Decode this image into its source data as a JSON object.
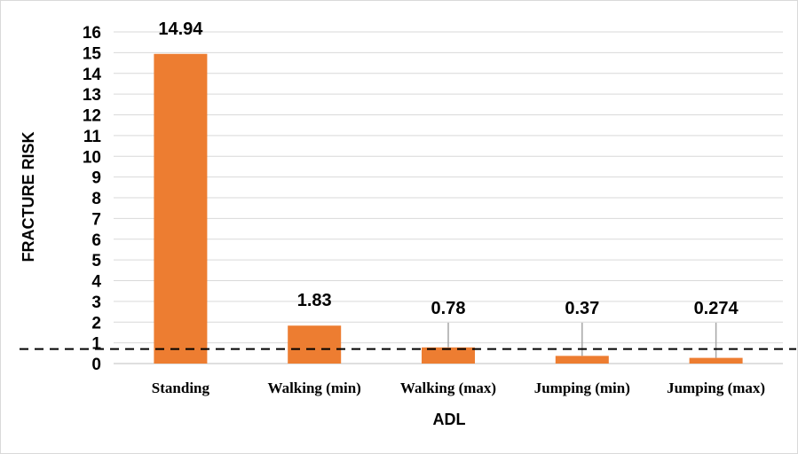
{
  "chart_data": {
    "type": "bar",
    "title": "",
    "xlabel": "ADL",
    "ylabel": "FRACTURE RISK",
    "categories": [
      "Standing",
      "Walking (min)",
      "Walking (max)",
      "Jumping (min)",
      "Jumping (max)"
    ],
    "values": [
      14.94,
      1.83,
      0.78,
      0.37,
      0.274
    ],
    "data_labels": [
      "14.94",
      "1.83",
      "0.78",
      "0.37",
      "0.274"
    ],
    "ylim": [
      0,
      16
    ],
    "yticks": [
      "0",
      "1",
      "2",
      "3",
      "4",
      "5",
      "6",
      "7",
      "8",
      "9",
      "10",
      "11",
      "12",
      "13",
      "14",
      "15",
      "16"
    ],
    "reference_line": {
      "value": 0.7,
      "style": "dashed",
      "color": "#000000"
    },
    "bar_color": "#ED7D31",
    "grid": true,
    "legend": "none"
  }
}
